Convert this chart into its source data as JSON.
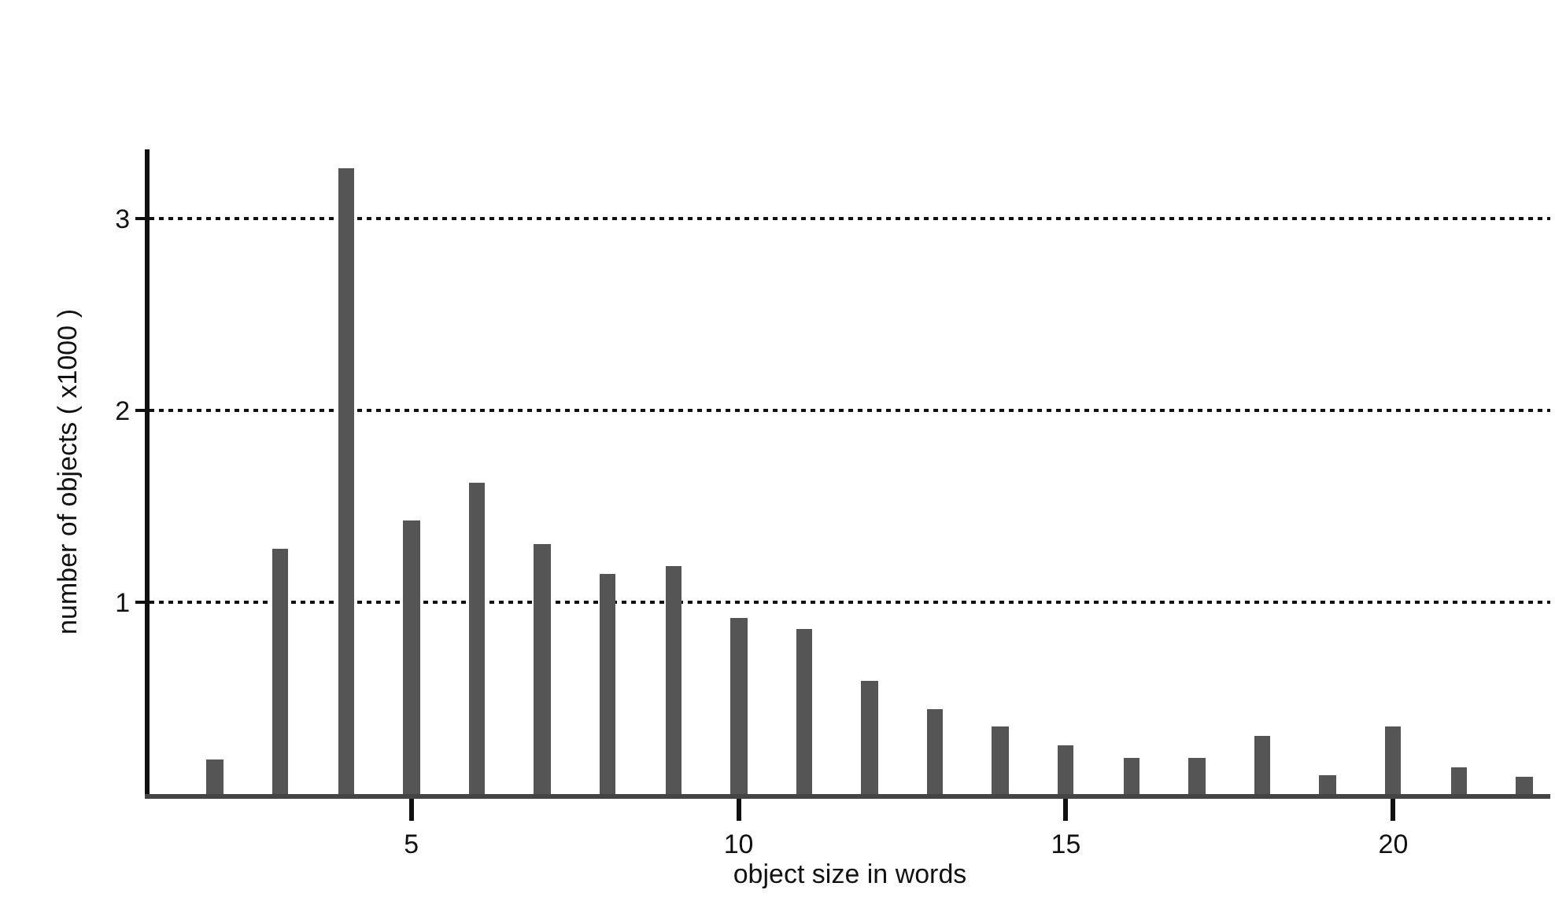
{
  "chart_data": {
    "type": "bar",
    "xlabel": "object size in words",
    "ylabel": "number of objects ( x1000 )",
    "x": [
      2,
      3,
      4,
      5,
      6,
      7,
      8,
      9,
      10,
      11,
      12,
      13,
      14,
      15,
      16,
      17,
      18,
      19,
      20,
      21,
      22
    ],
    "values": [
      0.18,
      1.28,
      3.26,
      1.43,
      1.62,
      1.3,
      1.15,
      1.19,
      0.92,
      0.86,
      0.59,
      0.44,
      0.35,
      0.25,
      0.19,
      0.19,
      0.3,
      0.1,
      0.35,
      0.14,
      0.09
    ],
    "color": "#555555",
    "xlim": [
      1,
      22.4
    ],
    "xticks": [
      5,
      10,
      15,
      20
    ],
    "ylim": [
      0,
      3.36
    ],
    "yticks": [
      1,
      2,
      3
    ],
    "grid": "y",
    "line_style": "dotted"
  }
}
